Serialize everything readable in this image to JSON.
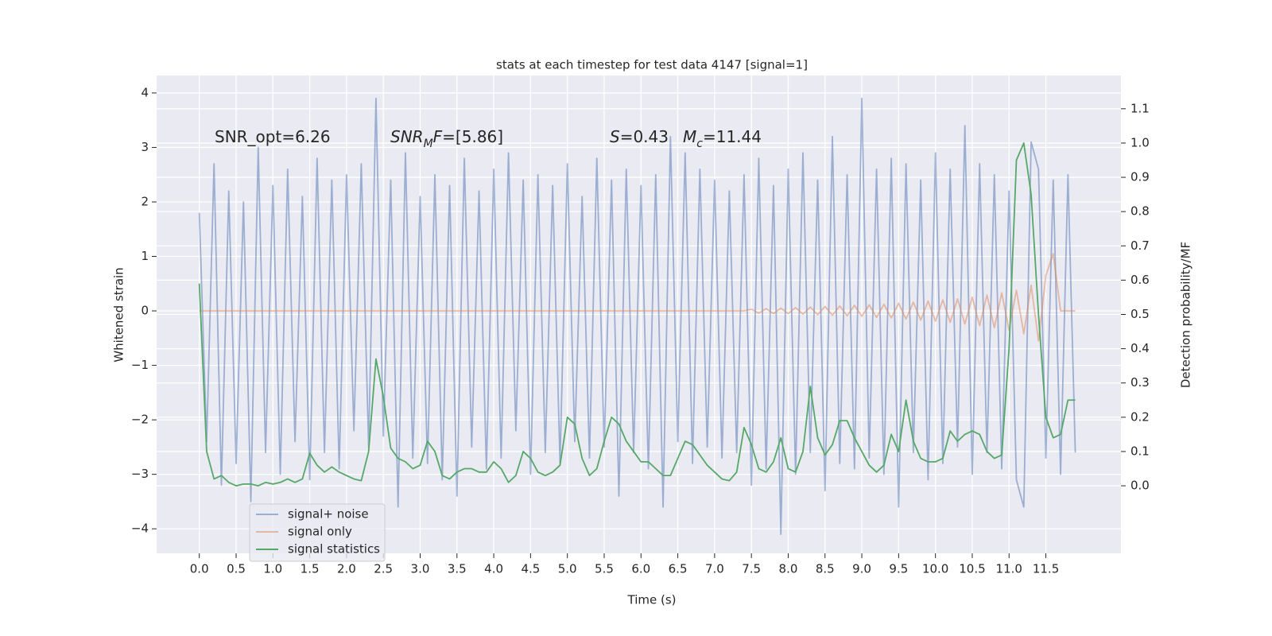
{
  "chart_data": {
    "type": "line",
    "title": "stats at each timestep for test data 4147 [signal=1]",
    "xlabel": "Time (s)",
    "ylabel": "Whitened strain",
    "y2label": "Detection probability/MF",
    "annotations": [
      [
        {
          "t": "SNR_opt=6.26"
        }
      ],
      [
        {
          "t": "SNR",
          "style": "italic"
        },
        {
          "t": "M",
          "style": "sub"
        },
        {
          "t": "F",
          "style": "italic"
        },
        {
          "t": "=[5.86]"
        }
      ],
      [
        {
          "t": "S",
          "style": "italic"
        },
        {
          "t": "=0.43"
        }
      ],
      [
        {
          "t": "M",
          "style": "italic"
        },
        {
          "t": "c",
          "style": "sub"
        },
        {
          "t": "=11.44"
        }
      ]
    ],
    "grid": true,
    "legend": "lower left",
    "background": "#eaeaf2",
    "xlim": [
      -0.58,
      12.52
    ],
    "ylim": [
      -4.45,
      4.32
    ],
    "y2lim": [
      -0.197,
      1.197
    ],
    "xticks": [
      {
        "value": 0,
        "label": "0.0"
      },
      0.5,
      {
        "value": 1,
        "label": "1.0"
      },
      1.5,
      {
        "value": 2,
        "label": "2.0"
      },
      2.5,
      {
        "value": 3,
        "label": "3.0"
      },
      3.5,
      {
        "value": 4,
        "label": "4.0"
      },
      4.5,
      {
        "value": 5,
        "label": "5.0"
      },
      5.5,
      {
        "value": 6,
        "label": "6.0"
      },
      6.5,
      {
        "value": 7,
        "label": "7.0"
      },
      7.5,
      {
        "value": 8,
        "label": "8.0"
      },
      8.5,
      {
        "value": 9,
        "label": "9.0"
      },
      9.5,
      {
        "value": 10,
        "label": "10.0"
      },
      10.5,
      {
        "value": 11,
        "label": "11.0"
      },
      11.5
    ],
    "yticks": [
      {
        "value": -4,
        "label": "−4"
      },
      {
        "value": -3,
        "label": "−3"
      },
      {
        "value": -2,
        "label": "−2"
      },
      {
        "value": -1,
        "label": "−1"
      },
      0,
      1,
      2,
      3,
      4
    ],
    "y2ticks": [
      {
        "value": 0,
        "label": "0.0"
      },
      0.1,
      0.2,
      0.3,
      0.4,
      0.5,
      0.6,
      0.7,
      0.8,
      0.9,
      {
        "value": 1,
        "label": "1.0"
      },
      1.1
    ],
    "x": [
      0,
      0.1,
      0.2,
      0.3,
      0.4,
      0.5,
      0.6,
      0.7,
      0.8,
      0.9,
      1,
      1.1,
      1.2,
      1.3,
      1.4,
      1.5,
      1.6,
      1.7,
      1.8,
      1.9,
      2,
      2.1,
      2.2,
      2.3,
      2.4,
      2.5,
      2.6,
      2.7,
      2.8,
      2.9,
      3,
      3.1,
      3.2,
      3.3,
      3.4,
      3.5,
      3.6,
      3.7,
      3.8,
      3.9,
      4,
      4.1,
      4.2,
      4.3,
      4.4,
      4.5,
      4.6,
      4.7,
      4.8,
      4.9,
      5,
      5.1,
      5.2,
      5.3,
      5.4,
      5.5,
      5.6,
      5.7,
      5.8,
      5.9,
      6,
      6.1,
      6.2,
      6.3,
      6.4,
      6.5,
      6.6,
      6.7,
      6.8,
      6.9,
      7,
      7.1,
      7.2,
      7.3,
      7.4,
      7.5,
      7.6,
      7.7,
      7.8,
      7.9,
      8,
      8.1,
      8.2,
      8.3,
      8.4,
      8.5,
      8.6,
      8.7,
      8.8,
      8.9,
      9,
      9.1,
      9.2,
      9.3,
      9.4,
      9.5,
      9.6,
      9.7,
      9.8,
      9.9,
      10,
      10.1,
      10.2,
      10.3,
      10.4,
      10.5,
      10.6,
      10.7,
      10.8,
      10.9,
      11,
      11.1,
      11.2,
      11.3,
      11.4,
      11.5,
      11.6,
      11.7,
      11.8,
      11.9
    ],
    "series": [
      {
        "name": "signal+ noise",
        "color": "#4c72b0",
        "opacity": 0.5,
        "values": [
          1.8,
          -2.4,
          2.7,
          -3.2,
          2.2,
          -2.8,
          2.0,
          -3.5,
          3.0,
          -2.6,
          2.3,
          -3.0,
          2.6,
          -2.4,
          2.1,
          -3.1,
          2.8,
          -2.6,
          2.4,
          -2.9,
          2.5,
          -2.2,
          2.7,
          -2.5,
          3.9,
          -2.3,
          2.4,
          -3.6,
          2.9,
          -2.7,
          2.1,
          -2.8,
          2.5,
          -3.1,
          2.3,
          -3.4,
          2.8,
          -2.5,
          2.2,
          -2.9,
          2.6,
          -2.7,
          2.9,
          -2.2,
          2.4,
          -3.0,
          2.5,
          -2.6,
          2.3,
          -2.8,
          2.7,
          -2.4,
          2.1,
          -2.7,
          2.8,
          -2.5,
          2.4,
          -3.4,
          2.6,
          -2.6,
          2.3,
          -2.9,
          2.5,
          -3.6,
          3.2,
          -2.4,
          2.9,
          -2.8,
          2.6,
          -2.5,
          2.4,
          -2.7,
          2.2,
          -2.6,
          2.5,
          -3.2,
          2.8,
          -2.9,
          2.3,
          -4.1,
          2.6,
          -3.0,
          2.9,
          -2.6,
          2.4,
          -3.3,
          3.2,
          -2.8,
          2.5,
          -2.9,
          3.9,
          -2.7,
          2.6,
          -3.0,
          2.8,
          -3.6,
          2.7,
          -2.6,
          2.4,
          -3.1,
          2.9,
          -2.8,
          2.6,
          -2.5,
          3.4,
          -3.0,
          2.7,
          -2.6,
          2.5,
          -2.9,
          2.2,
          -3.1,
          -3.6,
          3.1,
          2.6,
          -2.7,
          2.4,
          -3.0,
          2.5,
          -2.6
        ]
      },
      {
        "name": "signal only",
        "color": "#dd8452",
        "opacity": 0.5,
        "values": [
          0,
          0,
          0,
          0,
          0,
          0,
          0,
          0,
          0,
          0,
          0,
          0,
          0,
          0,
          0,
          0,
          0,
          0,
          0,
          0,
          0,
          0,
          0,
          0,
          0,
          0,
          0,
          0,
          0,
          0,
          0,
          0,
          0,
          0,
          0,
          0,
          0,
          0,
          0,
          0,
          0,
          0,
          0,
          0,
          0,
          0,
          0,
          0,
          0,
          0,
          0,
          0,
          0,
          0,
          0,
          0,
          0,
          0,
          0,
          0,
          0,
          0,
          0,
          0,
          0,
          0,
          0,
          0,
          0,
          0,
          0,
          0,
          0,
          0,
          0,
          0.03,
          -0.04,
          0.04,
          -0.05,
          0.05,
          -0.05,
          0.06,
          -0.06,
          0.07,
          -0.07,
          0.08,
          -0.08,
          0.09,
          -0.09,
          0.1,
          -0.1,
          0.11,
          -0.12,
          0.12,
          -0.13,
          0.14,
          -0.15,
          0.16,
          -0.17,
          0.18,
          -0.19,
          0.2,
          -0.21,
          0.22,
          -0.24,
          0.25,
          -0.27,
          0.29,
          -0.31,
          0.33,
          -0.35,
          0.38,
          -0.42,
          0.47,
          -0.55,
          0.65,
          1.05,
          0,
          0,
          0
        ]
      },
      {
        "name": "signal statistics",
        "color": "#55a868",
        "opacity": 1,
        "axis": "y2",
        "values": [
          0.59,
          0.1,
          0.02,
          0.03,
          0.01,
          0.0,
          0.005,
          0.005,
          0.0,
          0.01,
          0.005,
          0.01,
          0.02,
          0.01,
          0.02,
          0.095,
          0.06,
          0.04,
          0.055,
          0.04,
          0.03,
          0.02,
          0.015,
          0.1,
          0.37,
          0.26,
          0.11,
          0.08,
          0.07,
          0.05,
          0.06,
          0.13,
          0.1,
          0.03,
          0.02,
          0.04,
          0.05,
          0.05,
          0.04,
          0.04,
          0.07,
          0.05,
          0.01,
          0.03,
          0.1,
          0.08,
          0.04,
          0.03,
          0.04,
          0.06,
          0.2,
          0.18,
          0.08,
          0.03,
          0.05,
          0.13,
          0.2,
          0.18,
          0.13,
          0.1,
          0.07,
          0.07,
          0.05,
          0.03,
          0.03,
          0.08,
          0.13,
          0.12,
          0.09,
          0.06,
          0.04,
          0.02,
          0.015,
          0.04,
          0.17,
          0.12,
          0.05,
          0.04,
          0.07,
          0.14,
          0.05,
          0.04,
          0.1,
          0.29,
          0.14,
          0.09,
          0.12,
          0.19,
          0.19,
          0.14,
          0.1,
          0.06,
          0.04,
          0.06,
          0.15,
          0.1,
          0.25,
          0.13,
          0.08,
          0.07,
          0.07,
          0.08,
          0.16,
          0.13,
          0.15,
          0.16,
          0.15,
          0.1,
          0.08,
          0.09,
          0.4,
          0.95,
          1.0,
          0.85,
          0.5,
          0.2,
          0.14,
          0.15,
          0.25,
          0.25
        ]
      }
    ]
  }
}
